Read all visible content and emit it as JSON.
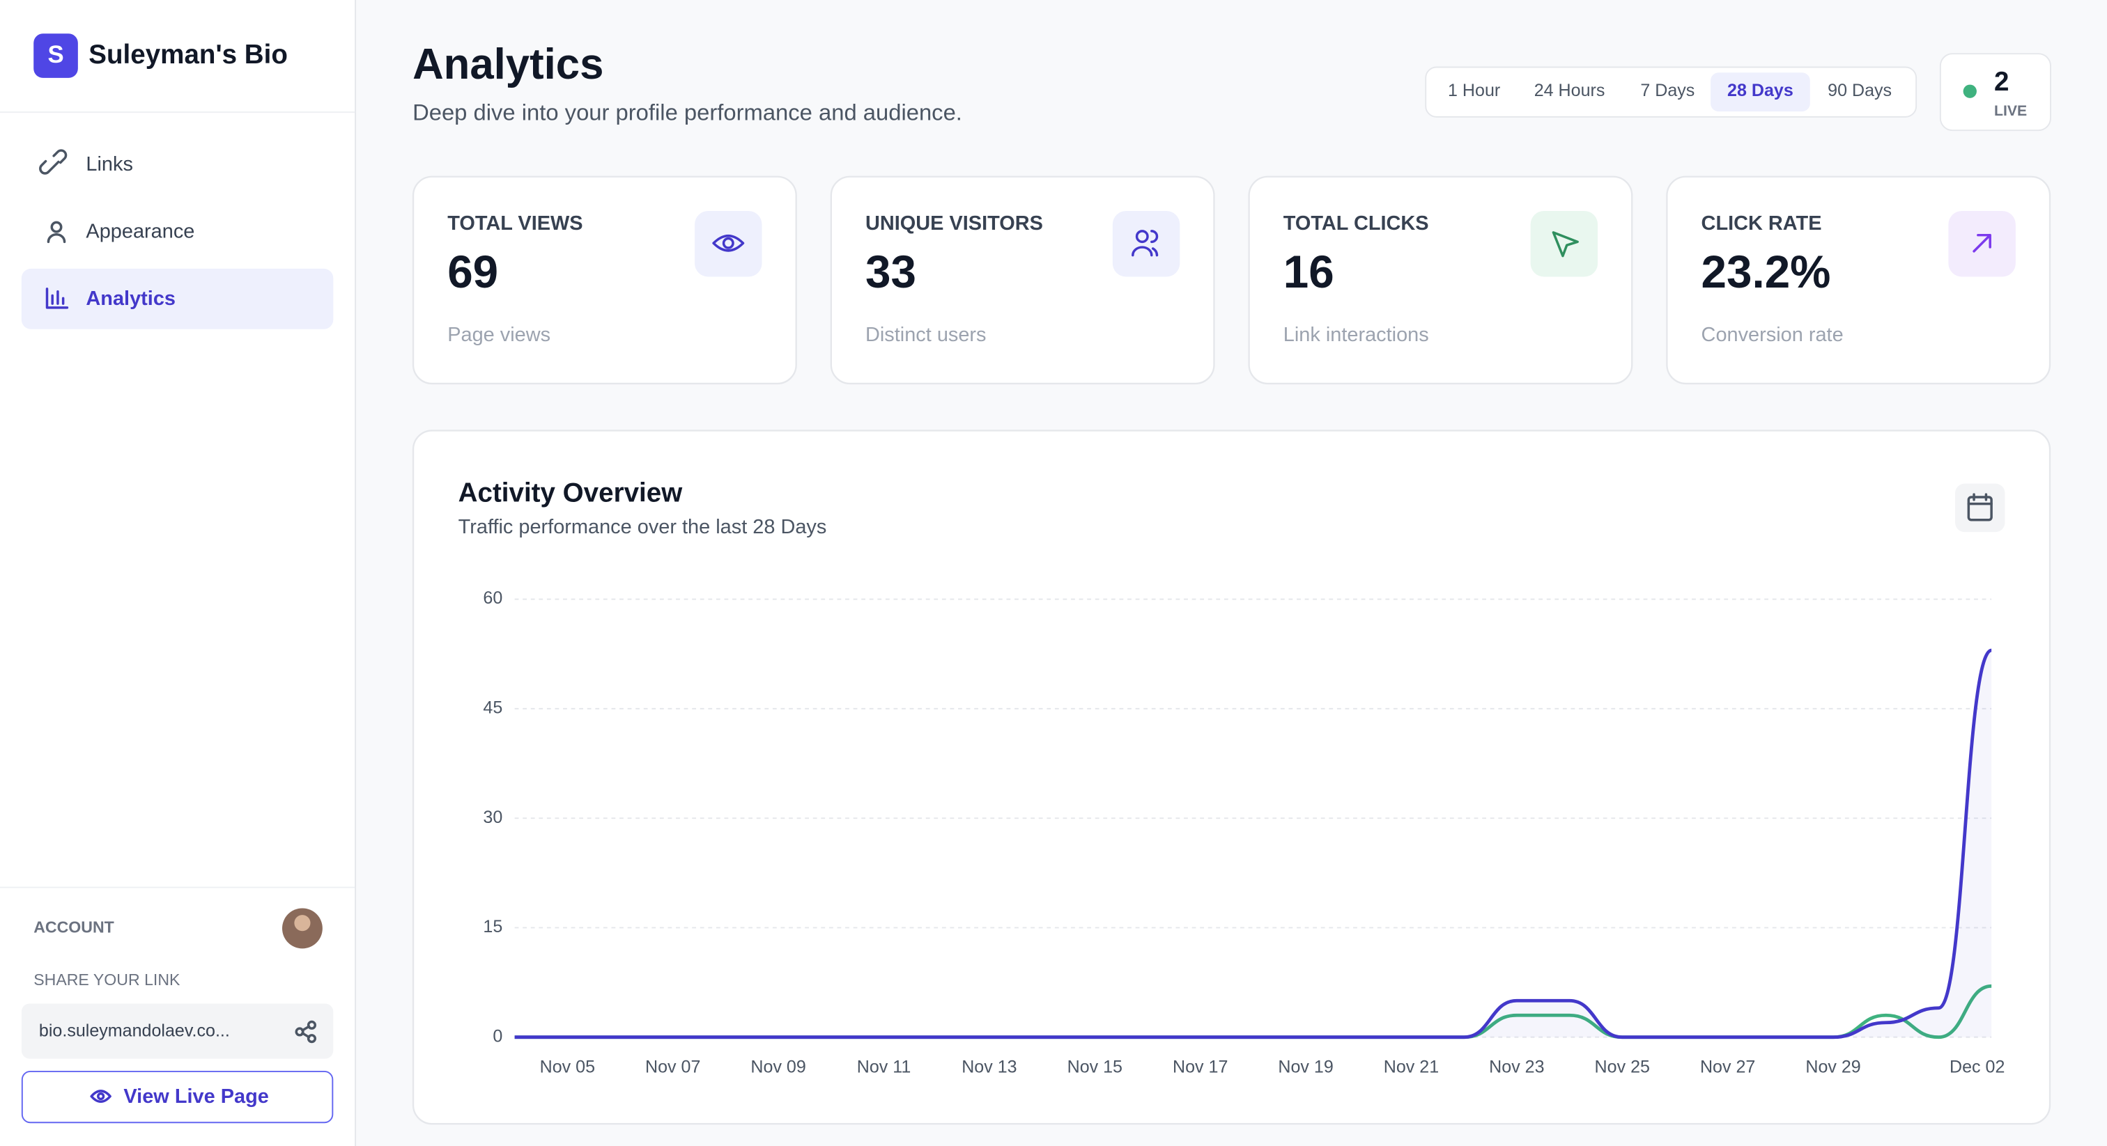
{
  "sidebar": {
    "brand_initial": "S",
    "brand": "Suleyman's Bio",
    "nav": [
      "Links",
      "Appearance",
      "Analytics"
    ],
    "account_label": "ACCOUNT",
    "share_label": "SHARE YOUR LINK",
    "share_link": "bio.suleymandolaev.co...",
    "view_button": "View Live Page"
  },
  "header": {
    "title": "Analytics",
    "subtitle": "Deep dive into your profile performance and audience.",
    "ranges": [
      "1 Hour",
      "24 Hours",
      "7 Days",
      "28 Days",
      "90 Days"
    ],
    "live_count": 2,
    "live_label": "LIVE"
  },
  "cards": [
    {
      "label": "TOTAL VIEWS",
      "value": 69,
      "caption": "Page views"
    },
    {
      "label": "UNIQUE VISITORS",
      "value": 33,
      "caption": "Distinct users"
    },
    {
      "label": "TOTAL CLICKS",
      "value": 16,
      "caption": "Link interactions"
    },
    {
      "label": "CLICK RATE",
      "value": "23.2%",
      "caption": "Conversion rate"
    }
  ],
  "chart_data": {
    "type": "line",
    "title": "Activity Overview",
    "subtitle": "Traffic performance over the last 28 Days",
    "categories": [
      null,
      "Nov 05",
      null,
      "Nov 07",
      null,
      "Nov 09",
      null,
      "Nov 11",
      null,
      "Nov 13",
      null,
      "Nov 15",
      null,
      "Nov 17",
      null,
      "Nov 19",
      null,
      "Nov 21",
      null,
      "Nov 23",
      null,
      "Nov 25",
      null,
      "Nov 27",
      null,
      "Nov 29",
      null,
      null,
      "Dec 02"
    ],
    "series": [
      {
        "color": "#4338ca",
        "values": [
          0,
          0,
          0,
          0,
          0,
          0,
          0,
          0,
          0,
          0,
          0,
          0,
          0,
          0,
          0,
          0,
          0,
          0,
          0,
          5,
          5,
          0,
          0,
          0,
          0,
          0,
          2,
          4,
          53
        ]
      },
      {
        "color": "#3fb27f",
        "values": [
          0,
          0,
          0,
          0,
          0,
          0,
          0,
          0,
          0,
          0,
          0,
          0,
          0,
          0,
          0,
          0,
          0,
          0,
          0,
          3,
          3,
          0,
          0,
          0,
          0,
          0,
          3,
          0,
          7
        ]
      }
    ],
    "ylim": [
      0,
      60
    ],
    "yticks": [
      0,
      15,
      30,
      45,
      60
    ],
    "grid": true
  }
}
